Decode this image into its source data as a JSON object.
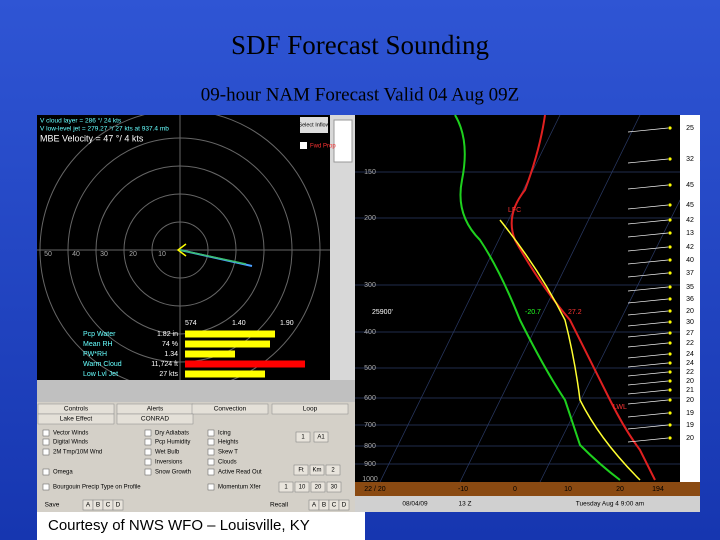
{
  "title": "SDF Forecast Sounding",
  "subtitle": "09-hour NAM Forecast Valid  04 Aug 09Z",
  "caption": "Courtesy of NWS WFO – Louisville, KY",
  "hodograph": {
    "lines": [
      "V cloud layer = 286 °/ 24 kts",
      "V low-level jet = 279.27 °/ 27 kts at 937.4 mb",
      "MBE Velocity = 47 °/ 4 kts"
    ],
    "ring_labels": [
      "50",
      "40",
      "30",
      "20",
      "10"
    ],
    "button": "Select Inflow",
    "checkbox": "Fwd Prop"
  },
  "params": {
    "scale": [
      "574",
      "1.40",
      "1.90"
    ],
    "rows": [
      {
        "label": "Pcp Water",
        "value": "1.82 in"
      },
      {
        "label": "Mean RH",
        "value": "74 %"
      },
      {
        "label": "PW*RH",
        "value": "1.34"
      },
      {
        "label": "Warm Cloud",
        "value": "11,724 ft"
      },
      {
        "label": "Low Lvl Jet",
        "value": "27 kts"
      }
    ]
  },
  "controls": {
    "tabs": [
      "Controls",
      "Alerts",
      "Convection",
      "Loop",
      "Lake Effect",
      "CONRAD"
    ],
    "checkboxes": [
      "Vector Winds",
      "Digital Winds",
      "2M Tmp/10M Wnd",
      "Omega",
      "Bourgouin Precip Type on Profile",
      "Dry Adiabats",
      "Pcp Humidity",
      "Wet Bulb",
      "Inversions",
      "Snow Growth",
      "Icing",
      "Heights",
      "Skew T",
      "Clouds",
      "Active Read Out",
      "Momentum Xfer"
    ],
    "buttons": [
      "1",
      "A1",
      "Ft",
      "Km",
      "2",
      "1",
      "10",
      "20",
      "30"
    ],
    "save_row": [
      "Save",
      "A",
      "B",
      "C",
      "D",
      "Recall",
      "A",
      "B",
      "C",
      "D"
    ]
  },
  "sounding": {
    "pressures": [
      "150",
      "200",
      "300",
      "400",
      "500",
      "600",
      "700",
      "800",
      "900",
      "1000"
    ],
    "labels": [
      "LFC",
      "25900'",
      "-20.7",
      "27.2",
      "LWL"
    ],
    "winds": [
      "25",
      "32",
      "45",
      "45",
      "42",
      "13",
      "42",
      "40",
      "37",
      "35",
      "36",
      "20",
      "30",
      "27",
      "22",
      "24",
      "24",
      "22",
      "20",
      "21",
      "20",
      "19",
      "19",
      "20"
    ],
    "bottom_bar": [
      "22 / 20",
      "-10",
      "0",
      "10",
      "20",
      "194"
    ],
    "status": [
      "08/04/09",
      "13 Z",
      "Tuesday   Aug 4   9:00 am"
    ]
  }
}
